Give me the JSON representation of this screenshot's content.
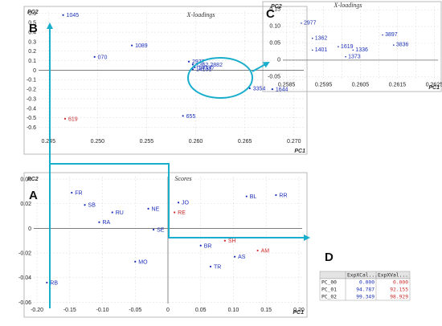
{
  "panel_labels": {
    "loadings": "B",
    "scores": "A",
    "zoom": "C",
    "table": "D"
  },
  "colors": {
    "blue": "#1a2fb8",
    "red": "#cc2a2a",
    "arrow": "#1aaecd"
  },
  "chart_data": [
    {
      "id": "loadings",
      "type": "scatter",
      "title": "X-loadings",
      "xlabel": "PC1",
      "ylabel": "PC2",
      "xlim": [
        0.244,
        0.271
      ],
      "ylim": [
        -0.68,
        0.62
      ],
      "xticks": [
        0.245,
        0.25,
        0.255,
        0.26,
        0.265,
        0.27
      ],
      "xtick_labels": [
        "0.245",
        "0.250",
        "0.255",
        "0.260",
        "0.265",
        "0.270"
      ],
      "yticks": [
        -0.6,
        -0.5,
        -0.4,
        -0.3,
        -0.2,
        -0.1,
        0,
        0.1,
        0.2,
        0.3,
        0.4,
        0.5,
        0.6
      ],
      "ytick_labels": [
        "-0.6",
        "-0.5",
        "-0.4",
        "-0.3",
        "-0.2",
        "-0.1",
        "0",
        "0.1",
        "0.2",
        "0.3",
        "0.4",
        "0.5",
        "0.6"
      ],
      "grid": true,
      "points": [
        {
          "label": "1045",
          "x": 0.2465,
          "y": 0.58,
          "color": "blue"
        },
        {
          "label": "1089",
          "x": 0.2535,
          "y": 0.26,
          "color": "blue"
        },
        {
          "label": "070",
          "x": 0.2497,
          "y": 0.14,
          "color": "blue"
        },
        {
          "label": "2977",
          "x": 0.2593,
          "y": 0.09,
          "color": "blue"
        },
        {
          "label": "1362 2882",
          "x": 0.2597,
          "y": 0.06,
          "color": "blue"
        },
        {
          "label": "14030",
          "x": 0.2599,
          "y": 0.03,
          "color": "blue"
        },
        {
          "label": "14131",
          "x": 0.2597,
          "y": 0.01,
          "color": "blue"
        },
        {
          "label": "3354",
          "x": 0.2655,
          "y": -0.19,
          "color": "blue"
        },
        {
          "label": "1644",
          "x": 0.2678,
          "y": -0.2,
          "color": "blue"
        },
        {
          "label": "655",
          "x": 0.2587,
          "y": -0.48,
          "color": "blue"
        },
        {
          "label": "619",
          "x": 0.2467,
          "y": -0.51,
          "color": "red"
        }
      ]
    },
    {
      "id": "scores",
      "type": "scatter",
      "title": "Scores",
      "xlabel": "PC1",
      "ylabel": "PC2",
      "xlim": [
        -0.205,
        0.205
      ],
      "ylim": [
        -0.061,
        0.042
      ],
      "xticks": [
        -0.2,
        -0.15,
        -0.1,
        -0.05,
        0,
        0.05,
        0.1,
        0.15,
        0.2
      ],
      "xtick_labels": [
        "-0.20",
        "-0.15",
        "-0.10",
        "-0.05",
        "0",
        "0.05",
        "0.10",
        "0.15",
        "0.20"
      ],
      "yticks": [
        -0.06,
        -0.04,
        -0.02,
        0,
        0.02,
        0.04
      ],
      "ytick_labels": [
        "-0.06",
        "-0.04",
        "-0.02",
        "0",
        "0.02",
        "0.04"
      ],
      "grid": true,
      "points": [
        {
          "label": "FR",
          "x": -0.147,
          "y": 0.029,
          "color": "blue"
        },
        {
          "label": "SB",
          "x": -0.127,
          "y": 0.019,
          "color": "blue"
        },
        {
          "label": "RU",
          "x": -0.085,
          "y": 0.013,
          "color": "blue"
        },
        {
          "label": "RA",
          "x": -0.105,
          "y": 0.005,
          "color": "blue"
        },
        {
          "label": "NE",
          "x": -0.03,
          "y": 0.016,
          "color": "blue"
        },
        {
          "label": "JO",
          "x": 0.016,
          "y": 0.021,
          "color": "blue"
        },
        {
          "label": "RE",
          "x": 0.01,
          "y": 0.013,
          "color": "red"
        },
        {
          "label": "BL",
          "x": 0.12,
          "y": 0.026,
          "color": "blue"
        },
        {
          "label": "RR",
          "x": 0.165,
          "y": 0.027,
          "color": "blue"
        },
        {
          "label": "SE",
          "x": -0.022,
          "y": -0.001,
          "color": "blue"
        },
        {
          "label": "SH",
          "x": 0.087,
          "y": -0.01,
          "color": "red"
        },
        {
          "label": "AM",
          "x": 0.137,
          "y": -0.018,
          "color": "red"
        },
        {
          "label": "BR",
          "x": 0.05,
          "y": -0.014,
          "color": "blue"
        },
        {
          "label": "AS",
          "x": 0.102,
          "y": -0.023,
          "color": "blue"
        },
        {
          "label": "MO",
          "x": -0.05,
          "y": -0.027,
          "color": "blue"
        },
        {
          "label": "TR",
          "x": 0.065,
          "y": -0.031,
          "color": "blue"
        },
        {
          "label": "RB",
          "x": -0.185,
          "y": -0.044,
          "color": "blue"
        }
      ]
    },
    {
      "id": "zoom",
      "type": "scatter",
      "title": "X-loadings",
      "xlabel": "PC1",
      "ylabel": "PC2",
      "xlim": [
        0.2584,
        0.2626
      ],
      "ylim": [
        -0.06,
        0.16
      ],
      "xticks": [
        0.2585,
        0.259,
        0.2595,
        0.26,
        0.2605,
        0.261,
        0.2615,
        0.262,
        0.2625
      ],
      "xtick_labels": [
        "0.2585",
        "",
        "0.2595",
        "",
        "0.2605",
        "",
        "0.2615",
        "",
        "0.2625"
      ],
      "yticks": [
        -0.05,
        0,
        0.05,
        0.1,
        0.15
      ],
      "ytick_labels": [
        "-0.05",
        "0",
        "0.05",
        "0.10",
        "0.15"
      ],
      "grid": true,
      "points": [
        {
          "label": "2977",
          "x": 0.2589,
          "y": 0.11,
          "color": "blue"
        },
        {
          "label": "1362",
          "x": 0.2592,
          "y": 0.065,
          "color": "blue"
        },
        {
          "label": "1401",
          "x": 0.2592,
          "y": 0.03,
          "color": "blue"
        },
        {
          "label": "1619",
          "x": 0.2599,
          "y": 0.04,
          "color": "blue"
        },
        {
          "label": "1336",
          "x": 0.2603,
          "y": 0.03,
          "color": "blue"
        },
        {
          "label": "1373",
          "x": 0.2601,
          "y": 0.01,
          "color": "blue"
        },
        {
          "label": "3897",
          "x": 0.2611,
          "y": 0.075,
          "color": "blue"
        },
        {
          "label": "3836",
          "x": 0.2614,
          "y": 0.045,
          "color": "blue"
        }
      ]
    }
  ],
  "table": {
    "headers": [
      "",
      "ExpXCal...",
      "ExpXVal..."
    ],
    "rows": [
      [
        "PC_00",
        "0.000",
        "0.000"
      ],
      [
        "PC_01",
        "94.787",
        "92.155"
      ],
      [
        "PC_02",
        "99.349",
        "98.929"
      ]
    ]
  }
}
